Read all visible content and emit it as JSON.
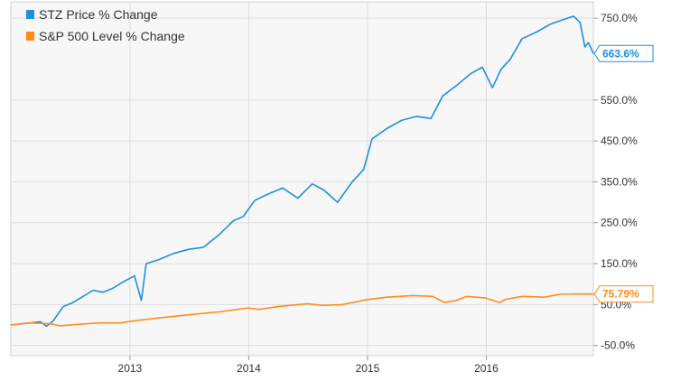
{
  "chart_data": {
    "type": "line",
    "x_ticks": [
      "2013",
      "2014",
      "2015",
      "2016"
    ],
    "y_ticks": [
      "-50.0%",
      "50.0%",
      "150.0%",
      "250.0%",
      "350.0%",
      "450.0%",
      "550.0%",
      "750.0%"
    ],
    "ylim": [
      -75,
      790
    ],
    "xlim": [
      "2012-01-01",
      "2016-11-25"
    ],
    "grid": true,
    "legend_position": "top-left",
    "series": [
      {
        "name": "STZ Price % Change",
        "color": "#1f8fe0",
        "end_label": "663.6%",
        "points": [
          [
            "2012-01-01",
            0
          ],
          [
            "2012-02-01",
            3
          ],
          [
            "2012-03-01",
            5
          ],
          [
            "2012-04-01",
            8
          ],
          [
            "2012-04-20",
            -3
          ],
          [
            "2012-05-10",
            10
          ],
          [
            "2012-06-10",
            45
          ],
          [
            "2012-07-10",
            55
          ],
          [
            "2012-08-10",
            70
          ],
          [
            "2012-09-10",
            85
          ],
          [
            "2012-10-10",
            80
          ],
          [
            "2012-11-10",
            90
          ],
          [
            "2012-12-10",
            105
          ],
          [
            "2013-01-15",
            120
          ],
          [
            "2013-02-05",
            60
          ],
          [
            "2013-02-20",
            150
          ],
          [
            "2013-04-01",
            160
          ],
          [
            "2013-05-15",
            175
          ],
          [
            "2013-07-01",
            185
          ],
          [
            "2013-08-15",
            190
          ],
          [
            "2013-10-01",
            220
          ],
          [
            "2013-11-15",
            255
          ],
          [
            "2013-12-15",
            265
          ],
          [
            "2014-01-20",
            305
          ],
          [
            "2014-03-01",
            320
          ],
          [
            "2014-04-15",
            335
          ],
          [
            "2014-06-01",
            310
          ],
          [
            "2014-07-15",
            345
          ],
          [
            "2014-08-20",
            330
          ],
          [
            "2014-10-01",
            300
          ],
          [
            "2014-11-15",
            350
          ],
          [
            "2014-12-20",
            380
          ],
          [
            "2015-01-15",
            455
          ],
          [
            "2015-03-01",
            480
          ],
          [
            "2015-04-15",
            500
          ],
          [
            "2015-06-01",
            510
          ],
          [
            "2015-07-15",
            505
          ],
          [
            "2015-08-20",
            560
          ],
          [
            "2015-10-01",
            585
          ],
          [
            "2015-11-15",
            615
          ],
          [
            "2015-12-20",
            630
          ],
          [
            "2016-01-20",
            580
          ],
          [
            "2016-02-15",
            625
          ],
          [
            "2016-03-15",
            650
          ],
          [
            "2016-04-20",
            700
          ],
          [
            "2016-06-01",
            715
          ],
          [
            "2016-07-15",
            735
          ],
          [
            "2016-08-20",
            745
          ],
          [
            "2016-09-25",
            755
          ],
          [
            "2016-10-15",
            740
          ],
          [
            "2016-10-30",
            680
          ],
          [
            "2016-11-10",
            690
          ],
          [
            "2016-11-25",
            663.6
          ]
        ]
      },
      {
        "name": "S&P 500 Level % Change",
        "color": "#ff8c1a",
        "end_label": "75.79%",
        "points": [
          [
            "2012-01-01",
            0
          ],
          [
            "2012-03-01",
            5
          ],
          [
            "2012-05-01",
            3
          ],
          [
            "2012-06-01",
            -2
          ],
          [
            "2012-08-01",
            2
          ],
          [
            "2012-10-01",
            5
          ],
          [
            "2012-12-01",
            5
          ],
          [
            "2013-02-01",
            12
          ],
          [
            "2013-05-01",
            20
          ],
          [
            "2013-07-01",
            25
          ],
          [
            "2013-10-01",
            32
          ],
          [
            "2013-12-31",
            42
          ],
          [
            "2014-02-01",
            38
          ],
          [
            "2014-04-01",
            45
          ],
          [
            "2014-07-01",
            52
          ],
          [
            "2014-08-15",
            48
          ],
          [
            "2014-10-15",
            50
          ],
          [
            "2014-12-31",
            62
          ],
          [
            "2015-03-01",
            68
          ],
          [
            "2015-05-20",
            72
          ],
          [
            "2015-07-20",
            70
          ],
          [
            "2015-08-25",
            55
          ],
          [
            "2015-10-01",
            60
          ],
          [
            "2015-11-01",
            70
          ],
          [
            "2015-12-31",
            66
          ],
          [
            "2016-02-11",
            55
          ],
          [
            "2016-03-01",
            63
          ],
          [
            "2016-04-20",
            70
          ],
          [
            "2016-06-27",
            68
          ],
          [
            "2016-08-15",
            75
          ],
          [
            "2016-10-01",
            76
          ],
          [
            "2016-11-25",
            75.79
          ]
        ]
      }
    ]
  }
}
